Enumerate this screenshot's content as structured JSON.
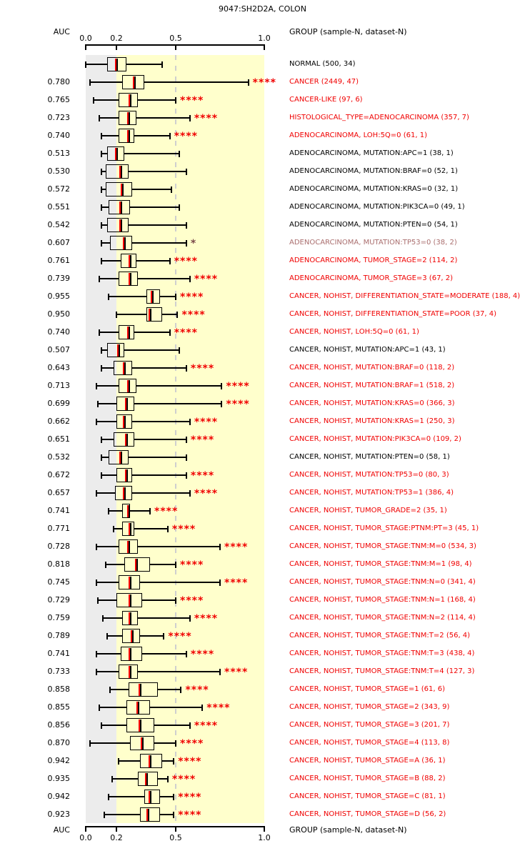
{
  "title": "9047:SH2D2A, COLON",
  "header": {
    "auc_label": "AUC",
    "group_label": "GROUP (sample-N, dataset-N)"
  },
  "footer": {
    "auc_label": "AUC",
    "group_label": "GROUP (sample-N, dataset-N)"
  },
  "colors": {
    "red_text": "#f00000",
    "black_text": "#000000",
    "faded_text": "#aa6e6e",
    "faded_star": "#7a4a4a",
    "median_line": "#ff0000",
    "gray_zone": "#ececec",
    "yellow_zone": "#ffffcc",
    "dashed_line": "#cfcfcf"
  },
  "chart_data": {
    "type": "boxplot-list",
    "title": "9047:SH2D2A, COLON",
    "xlabel": "AUC",
    "axis": {
      "range": [
        0.0,
        1.0
      ],
      "ticks": [
        0.0,
        0.2,
        0.5,
        1.0
      ],
      "tick_labels": [
        "0.0",
        "0.2",
        "0.5",
        "1.0"
      ],
      "gray_zone": [
        0.0,
        0.2
      ],
      "yellow_zone": [
        0.2,
        1.0
      ],
      "dashed_reference": 0.5
    },
    "rows": [
      {
        "auc": "",
        "label": "NORMAL (500, 34)",
        "color": "black",
        "sig": "",
        "box": [
          0.0,
          0.14,
          0.2,
          0.25,
          0.43
        ]
      },
      {
        "auc": "0.780",
        "label": "CANCER (2449, 47)",
        "color": "red",
        "sig": "****",
        "box": [
          0.03,
          0.23,
          0.29,
          0.34,
          0.91
        ]
      },
      {
        "auc": "0.765",
        "label": "CANCER-LIKE (97, 6)",
        "color": "red",
        "sig": "****",
        "box": [
          0.05,
          0.21,
          0.27,
          0.31,
          0.5
        ]
      },
      {
        "auc": "0.723",
        "label": "HISTOLOGICAL_TYPE=ADENOCARCINOMA (357, 7)",
        "color": "red",
        "sig": "****",
        "box": [
          0.09,
          0.21,
          0.26,
          0.3,
          0.58
        ]
      },
      {
        "auc": "0.740",
        "label": "ADENOCARCINOMA, LOH:5Q=0 (61, 1)",
        "color": "red",
        "sig": "****",
        "box": [
          0.1,
          0.21,
          0.26,
          0.29,
          0.47
        ]
      },
      {
        "auc": "0.513",
        "label": "ADENOCARCINOMA, MUTATION:APC=1 (38, 1)",
        "color": "black",
        "sig": "",
        "box": [
          0.1,
          0.14,
          0.2,
          0.24,
          0.52
        ]
      },
      {
        "auc": "0.530",
        "label": "ADENOCARCINOMA, MUTATION:BRAF=0 (52, 1)",
        "color": "black",
        "sig": "",
        "box": [
          0.1,
          0.13,
          0.22,
          0.26,
          0.56
        ]
      },
      {
        "auc": "0.572",
        "label": "ADENOCARCINOMA, MUTATION:KRAS=0 (32, 1)",
        "color": "black",
        "sig": "",
        "box": [
          0.1,
          0.13,
          0.23,
          0.28,
          0.48
        ]
      },
      {
        "auc": "0.551",
        "label": "ADENOCARCINOMA, MUTATION:PIK3CA=0 (49, 1)",
        "color": "black",
        "sig": "",
        "box": [
          0.1,
          0.15,
          0.22,
          0.27,
          0.52
        ]
      },
      {
        "auc": "0.542",
        "label": "ADENOCARCINOMA, MUTATION:PTEN=0 (54, 1)",
        "color": "black",
        "sig": "",
        "box": [
          0.1,
          0.14,
          0.22,
          0.26,
          0.56
        ]
      },
      {
        "auc": "0.607",
        "label": "ADENOCARCINOMA, MUTATION:TP53=0 (38, 2)",
        "color": "faded",
        "sig": "*",
        "box": [
          0.1,
          0.16,
          0.24,
          0.28,
          0.56
        ]
      },
      {
        "auc": "0.761",
        "label": "ADENOCARCINOMA, TUMOR_STAGE=2 (114, 2)",
        "color": "red",
        "sig": "****",
        "box": [
          0.1,
          0.22,
          0.27,
          0.3,
          0.47
        ]
      },
      {
        "auc": "0.739",
        "label": "ADENOCARCINOMA, TUMOR_STAGE=3 (67, 2)",
        "color": "red",
        "sig": "****",
        "box": [
          0.09,
          0.21,
          0.27,
          0.31,
          0.58
        ]
      },
      {
        "auc": "0.955",
        "label": "CANCER, NOHIST, DIFFERENTIATION_STATE=MODERATE (188, 4)",
        "color": "red",
        "sig": "****",
        "box": [
          0.15,
          0.35,
          0.38,
          0.42,
          0.5
        ]
      },
      {
        "auc": "0.950",
        "label": "CANCER, NOHIST, DIFFERENTIATION_STATE=POOR (37, 4)",
        "color": "red",
        "sig": "****",
        "box": [
          0.2,
          0.35,
          0.37,
          0.43,
          0.51
        ]
      },
      {
        "auc": "0.740",
        "label": "CANCER, NOHIST, LOH:5Q=0 (61, 1)",
        "color": "red",
        "sig": "****",
        "box": [
          0.09,
          0.21,
          0.26,
          0.29,
          0.47
        ]
      },
      {
        "auc": "0.507",
        "label": "CANCER, NOHIST, MUTATION:APC=1 (43, 1)",
        "color": "black",
        "sig": "",
        "box": [
          0.1,
          0.14,
          0.21,
          0.24,
          0.52
        ]
      },
      {
        "auc": "0.643",
        "label": "CANCER, NOHIST, MUTATION:BRAF=0 (118, 2)",
        "color": "red",
        "sig": "****",
        "box": [
          0.1,
          0.18,
          0.24,
          0.28,
          0.56
        ]
      },
      {
        "auc": "0.713",
        "label": "CANCER, NOHIST, MUTATION:BRAF=1 (518, 2)",
        "color": "red",
        "sig": "****",
        "box": [
          0.07,
          0.21,
          0.26,
          0.3,
          0.76
        ]
      },
      {
        "auc": "0.699",
        "label": "CANCER, NOHIST, MUTATION:KRAS=0 (366, 3)",
        "color": "red",
        "sig": "****",
        "box": [
          0.08,
          0.2,
          0.25,
          0.29,
          0.76
        ]
      },
      {
        "auc": "0.662",
        "label": "CANCER, NOHIST, MUTATION:KRAS=1 (250, 3)",
        "color": "red",
        "sig": "****",
        "box": [
          0.07,
          0.2,
          0.24,
          0.28,
          0.58
        ]
      },
      {
        "auc": "0.651",
        "label": "CANCER, NOHIST, MUTATION:PIK3CA=0 (109, 2)",
        "color": "red",
        "sig": "****",
        "box": [
          0.1,
          0.18,
          0.25,
          0.29,
          0.56
        ]
      },
      {
        "auc": "0.532",
        "label": "CANCER, NOHIST, MUTATION:PTEN=0 (58, 1)",
        "color": "black",
        "sig": "",
        "box": [
          0.1,
          0.15,
          0.22,
          0.26,
          0.56
        ]
      },
      {
        "auc": "0.672",
        "label": "CANCER, NOHIST, MUTATION:TP53=0 (80, 3)",
        "color": "red",
        "sig": "****",
        "box": [
          0.1,
          0.2,
          0.25,
          0.28,
          0.56
        ]
      },
      {
        "auc": "0.657",
        "label": "CANCER, NOHIST, MUTATION:TP53=1 (386, 4)",
        "color": "red",
        "sig": "****",
        "box": [
          0.07,
          0.19,
          0.24,
          0.28,
          0.58
        ]
      },
      {
        "auc": "0.741",
        "label": "CANCER, NOHIST, TUMOR_GRADE=2 (35, 1)",
        "color": "red",
        "sig": "****",
        "box": [
          0.15,
          0.23,
          0.26,
          0.27,
          0.37
        ]
      },
      {
        "auc": "0.771",
        "label": "CANCER, NOHIST, TUMOR_STAGE:PTNM:PT=3 (45, 1)",
        "color": "red",
        "sig": "****",
        "box": [
          0.18,
          0.23,
          0.27,
          0.29,
          0.46
        ]
      },
      {
        "auc": "0.728",
        "label": "CANCER, NOHIST, TUMOR_STAGE:TNM:M=0 (534, 3)",
        "color": "red",
        "sig": "****",
        "box": [
          0.07,
          0.21,
          0.26,
          0.31,
          0.75
        ]
      },
      {
        "auc": "0.818",
        "label": "CANCER, NOHIST, TUMOR_STAGE:TNM:M=1 (98, 4)",
        "color": "red",
        "sig": "****",
        "box": [
          0.13,
          0.24,
          0.3,
          0.37,
          0.5
        ]
      },
      {
        "auc": "0.745",
        "label": "CANCER, NOHIST, TUMOR_STAGE:TNM:N=0 (341, 4)",
        "color": "red",
        "sig": "****",
        "box": [
          0.07,
          0.21,
          0.27,
          0.32,
          0.75
        ]
      },
      {
        "auc": "0.729",
        "label": "CANCER, NOHIST, TUMOR_STAGE:TNM:N=1 (168, 4)",
        "color": "red",
        "sig": "****",
        "box": [
          0.08,
          0.2,
          0.27,
          0.33,
          0.5
        ]
      },
      {
        "auc": "0.759",
        "label": "CANCER, NOHIST, TUMOR_STAGE:TNM:N=2 (114, 4)",
        "color": "red",
        "sig": "****",
        "box": [
          0.11,
          0.23,
          0.27,
          0.31,
          0.58
        ]
      },
      {
        "auc": "0.789",
        "label": "CANCER, NOHIST, TUMOR_STAGE:TNM:T=2 (56, 4)",
        "color": "red",
        "sig": "****",
        "box": [
          0.14,
          0.23,
          0.28,
          0.32,
          0.44
        ]
      },
      {
        "auc": "0.741",
        "label": "CANCER, NOHIST, TUMOR_STAGE:TNM:T=3 (438, 4)",
        "color": "red",
        "sig": "****",
        "box": [
          0.07,
          0.22,
          0.27,
          0.33,
          0.56
        ]
      },
      {
        "auc": "0.733",
        "label": "CANCER, NOHIST, TUMOR_STAGE:TNM:T=4 (127, 3)",
        "color": "red",
        "sig": "****",
        "box": [
          0.07,
          0.21,
          0.27,
          0.31,
          0.75
        ]
      },
      {
        "auc": "0.858",
        "label": "CANCER, NOHIST, TUMOR_STAGE=1 (61, 6)",
        "color": "red",
        "sig": "****",
        "box": [
          0.16,
          0.26,
          0.32,
          0.41,
          0.53
        ]
      },
      {
        "auc": "0.855",
        "label": "CANCER, NOHIST, TUMOR_STAGE=2 (343, 9)",
        "color": "red",
        "sig": "****",
        "box": [
          0.09,
          0.25,
          0.31,
          0.37,
          0.65
        ]
      },
      {
        "auc": "0.856",
        "label": "CANCER, NOHIST, TUMOR_STAGE=3 (201, 7)",
        "color": "red",
        "sig": "****",
        "box": [
          0.1,
          0.25,
          0.32,
          0.39,
          0.58
        ]
      },
      {
        "auc": "0.870",
        "label": "CANCER, NOHIST, TUMOR_STAGE=4 (113, 8)",
        "color": "red",
        "sig": "****",
        "box": [
          0.03,
          0.27,
          0.33,
          0.39,
          0.5
        ]
      },
      {
        "auc": "0.942",
        "label": "CANCER, NOHIST, TUMOR_STAGE=A (36, 1)",
        "color": "red",
        "sig": "****",
        "box": [
          0.21,
          0.32,
          0.37,
          0.43,
          0.49
        ]
      },
      {
        "auc": "0.935",
        "label": "CANCER, NOHIST, TUMOR_STAGE=B (88, 2)",
        "color": "red",
        "sig": "****",
        "box": [
          0.17,
          0.31,
          0.35,
          0.41,
          0.46
        ]
      },
      {
        "auc": "0.942",
        "label": "CANCER, NOHIST, TUMOR_STAGE=C (81, 1)",
        "color": "red",
        "sig": "****",
        "box": [
          0.15,
          0.34,
          0.37,
          0.42,
          0.49
        ]
      },
      {
        "auc": "0.923",
        "label": "CANCER, NOHIST, TUMOR_STAGE=D (56, 2)",
        "color": "red",
        "sig": "****",
        "box": [
          0.12,
          0.32,
          0.36,
          0.42,
          0.49
        ]
      }
    ]
  }
}
